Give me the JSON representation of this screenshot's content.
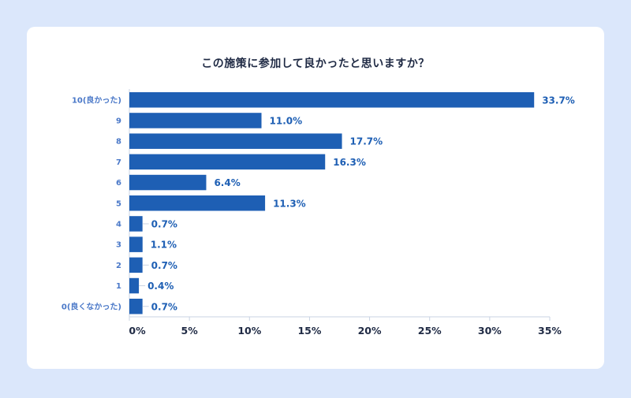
{
  "chart_data": {
    "type": "bar",
    "orientation": "horizontal",
    "title": "この施策に参加して良かったと思いますか？",
    "categories": [
      "10(良かった)",
      "9",
      "8",
      "7",
      "6",
      "5",
      "4",
      "3",
      "2",
      "1",
      "0(良くなかった)"
    ],
    "values": [
      33.7,
      11.0,
      17.7,
      16.3,
      6.4,
      11.3,
      0.7,
      1.1,
      0.7,
      0.4,
      0.7
    ],
    "value_labels": [
      "33.7%",
      "11.0%",
      "17.7%",
      "16.3%",
      "6.4%",
      "11.3%",
      "0.7%",
      "1.1%",
      "0.7%",
      "0.4%",
      "0.7%"
    ],
    "xlim": [
      0,
      35
    ],
    "xticks": [
      0,
      5,
      10,
      15,
      20,
      25,
      30,
      35
    ],
    "xtick_labels": [
      "0%",
      "5%",
      "10%",
      "15%",
      "20%",
      "25%",
      "30%",
      "35%"
    ],
    "grid": false,
    "bar_color": "#1e5fb4"
  }
}
